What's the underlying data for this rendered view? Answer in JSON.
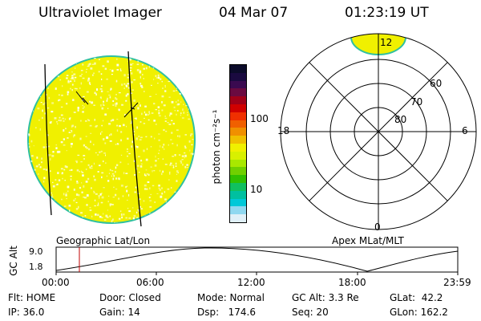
{
  "header": {
    "instrument": "Ultraviolet Imager",
    "date": "04 Mar 07",
    "time": "01:23:19 UT"
  },
  "colorbar": {
    "unit_label": "photon cm⁻²s⁻¹",
    "ticks": [
      "100",
      "10"
    ],
    "colors_top_to_bottom": [
      "#0b0b2a",
      "#1a0a40",
      "#3a0a50",
      "#6a0a40",
      "#a00018",
      "#d00000",
      "#f03000",
      "#f06000",
      "#f09000",
      "#f0c000",
      "#f0f000",
      "#d8f000",
      "#a8e800",
      "#70d000",
      "#30c000",
      "#10c060",
      "#00c0a0",
      "#00c8d8",
      "#90d8f0",
      "#e0f0f8"
    ]
  },
  "polar_plot": {
    "mlt_labels": {
      "top": "12",
      "left": "18",
      "right": "6",
      "bottom": "0"
    },
    "lat_labels": [
      "60",
      "70",
      "80"
    ]
  },
  "timeline": {
    "y_axis_label": "GC Alt",
    "y_ticks": [
      "9.0",
      "1.8"
    ],
    "left_title": "Geographic Lat/Lon",
    "right_title": "Apex MLat/MLT",
    "x_ticks": [
      "00:00",
      "06:00",
      "12:00",
      "18:00",
      "23:59"
    ],
    "current_time_hours": 1.39
  },
  "info": {
    "row1": [
      "Flt: HOME",
      "Door: Closed",
      "Mode: Normal",
      "GC Alt: 3.3 Re",
      "GLat:  42.2"
    ],
    "row2": [
      "IP: 36.0",
      "Gain: 14",
      "Dsp:   174.6",
      "Seq: 20",
      "GLon: 162.2"
    ]
  },
  "colors": {
    "disk_fill": "#f0f000",
    "disk_edge": "#30c0a0",
    "speckle": "#fffff0",
    "cursor_line": "#c00000"
  }
}
